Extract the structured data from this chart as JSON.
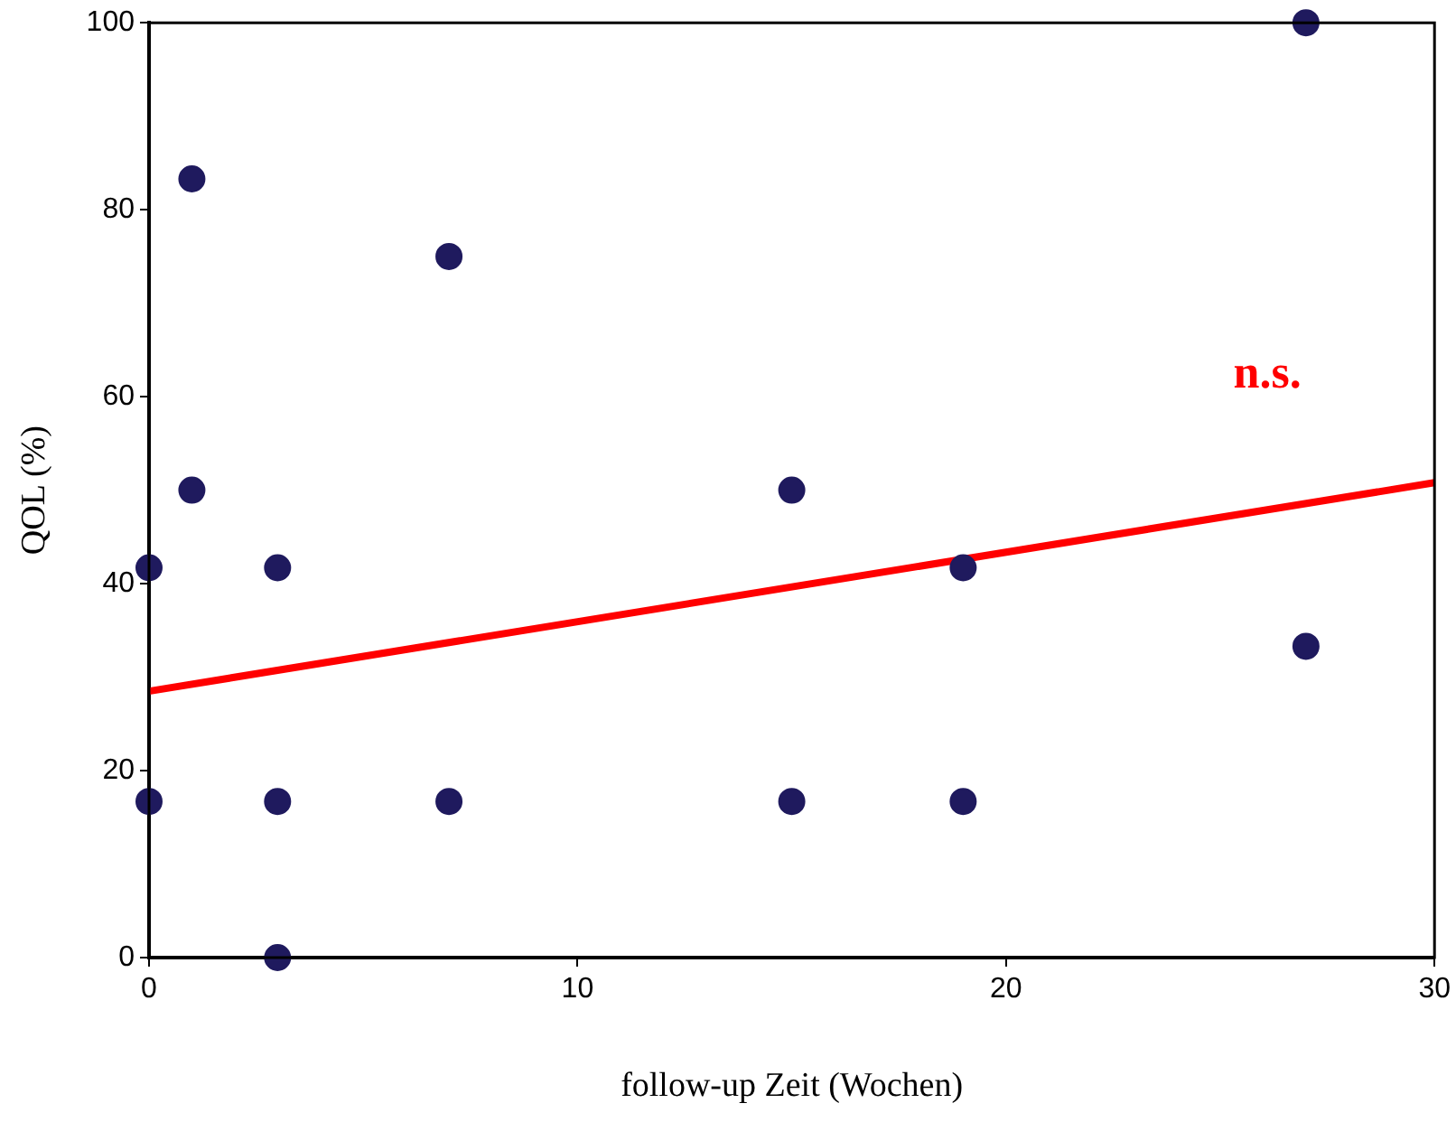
{
  "chart_data": {
    "type": "scatter",
    "xlabel": "follow-up Zeit (Wochen)",
    "ylabel": "QOL (%)",
    "annotations": [
      "n.s."
    ],
    "series": [
      {
        "marker": "circle",
        "color": "#1f1a5e",
        "x": [
          0,
          0,
          1,
          1,
          3,
          3,
          3,
          7,
          7,
          15,
          15,
          19,
          19,
          27,
          27
        ],
        "values": [
          41.7,
          16.7,
          83.3,
          50,
          41.7,
          16.7,
          0,
          75,
          16.7,
          50,
          16.7,
          41.7,
          16.7,
          100,
          33.3
        ]
      },
      {
        "type": "line",
        "marker": "none",
        "color": "#ff0000",
        "x": [
          0,
          30
        ],
        "values": [
          28.5,
          50.8
        ]
      }
    ],
    "xlim": [
      0,
      30
    ],
    "xticks": [
      0,
      10,
      20,
      30
    ],
    "ylim": [
      0,
      100
    ],
    "yticks": [
      0,
      20,
      40,
      60,
      80,
      100
    ],
    "grid": false,
    "legend": false
  }
}
